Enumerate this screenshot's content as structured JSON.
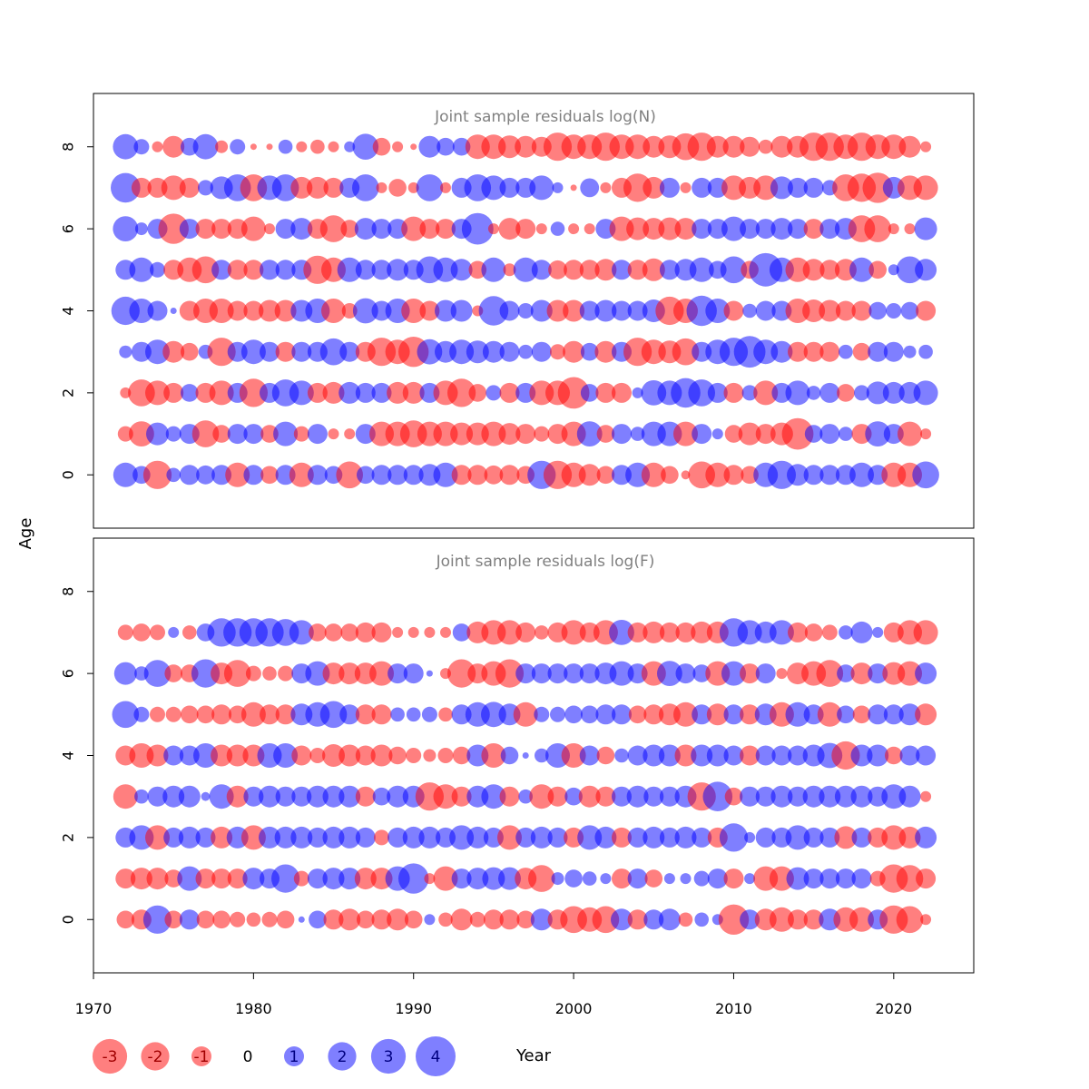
{
  "chart_data": {
    "type": "scatter",
    "subtype": "bubble",
    "shared_axes": {
      "xlabel": "Year",
      "ylabel": "Age",
      "xlim": [
        1970,
        2025
      ],
      "xticks": [
        "1970",
        "1980",
        "1990",
        "2000",
        "2010",
        "2020"
      ],
      "ylim": [
        -1.3,
        9.3
      ],
      "yticks": [
        "0",
        "2",
        "4",
        "6",
        "8"
      ]
    },
    "colors": {
      "negative": "#ff0000",
      "positive": "#0000ff",
      "opacity": 0.5
    },
    "legend": {
      "placement": "bottom-left",
      "entries": [
        {
          "label": "-3",
          "value": -3
        },
        {
          "label": "-2",
          "value": -2
        },
        {
          "label": "-1",
          "value": -1
        },
        {
          "label": "0",
          "value": 0
        },
        {
          "label": "1",
          "value": 1
        },
        {
          "label": "2",
          "value": 2
        },
        {
          "label": "3",
          "value": 3
        },
        {
          "label": "4",
          "value": 4
        }
      ]
    },
    "years": [
      1972,
      1973,
      1974,
      1975,
      1976,
      1977,
      1978,
      1979,
      1980,
      1981,
      1982,
      1983,
      1984,
      1985,
      1986,
      1987,
      1988,
      1989,
      1990,
      1991,
      1992,
      1993,
      1994,
      1995,
      1996,
      1997,
      1998,
      1999,
      2000,
      2001,
      2002,
      2003,
      2004,
      2005,
      2006,
      2007,
      2008,
      2009,
      2010,
      2011,
      2012,
      2013,
      2014,
      2015,
      2016,
      2017,
      2018,
      2019,
      2020,
      2021,
      2022
    ],
    "panels": [
      {
        "title": "Joint sample residuals log(N)",
        "ages": [
          0,
          1,
          2,
          3,
          4,
          5,
          6,
          7,
          8
        ],
        "residuals": [
          [
            1.5,
            0.8,
            -2.0,
            0.5,
            1.0,
            0.9,
            1.0,
            -1.5,
            1.0,
            -0.8,
            1.0,
            -1.5,
            1.0,
            0.8,
            -1.8,
            0.8,
            1.0,
            1.0,
            1.0,
            1.2,
            1.5,
            -1.0,
            -1.0,
            -0.9,
            -1.0,
            -0.8,
            2.0,
            -2.0,
            -1.5,
            -1.2,
            -0.8,
            1.0,
            1.5,
            -1.5,
            -0.8,
            -0.2,
            -1.8,
            -1.5,
            -1.0,
            -0.8,
            1.5,
            2.0,
            1.2,
            1.0,
            1.0,
            1.0,
            1.5,
            1.0,
            -1.5,
            -1.5,
            1.8
          ],
          [
            -0.6,
            -1.6,
            1.3,
            0.6,
            1.0,
            -1.8,
            -0.8,
            1.0,
            1.0,
            -0.8,
            1.5,
            -0.6,
            1.0,
            -0.3,
            -0.3,
            1.0,
            -1.5,
            -1.5,
            -1.8,
            -1.5,
            -1.5,
            -1.3,
            -1.3,
            -1.5,
            -1.2,
            -1.0,
            -0.6,
            -1.0,
            -1.5,
            1.6,
            -0.8,
            1.0,
            0.5,
            1.5,
            1.5,
            -1.5,
            1.0,
            0.3,
            -0.8,
            -1.3,
            -1.0,
            -1.3,
            -2.5,
            0.8,
            1.0,
            0.5,
            -1.0,
            1.6,
            1.0,
            -1.5,
            -0.3
          ],
          [
            -0.3,
            -1.8,
            -1.5,
            -1.0,
            0.8,
            -1.0,
            -1.5,
            1.0,
            -2.0,
            1.0,
            1.8,
            1.5,
            -1.0,
            -1.2,
            1.2,
            1.0,
            1.0,
            -1.2,
            -1.2,
            1.0,
            -1.5,
            -2.0,
            -0.8,
            0.6,
            -1.0,
            1.0,
            -1.5,
            -1.5,
            -2.5,
            0.8,
            -1.0,
            -1.0,
            0.3,
            1.6,
            1.5,
            2.2,
            1.8,
            1.0,
            -1.0,
            0.6,
            -1.5,
            1.0,
            1.5,
            0.5,
            1.0,
            -0.8,
            0.6,
            1.3,
            1.2,
            1.2,
            1.5
          ],
          [
            0.4,
            1.0,
            1.5,
            -1.2,
            -0.8,
            0.5,
            -2.0,
            1.0,
            1.5,
            1.0,
            -1.0,
            1.0,
            1.0,
            1.8,
            1.0,
            -1.0,
            -2.0,
            -1.5,
            -2.3,
            1.6,
            1.2,
            1.5,
            1.3,
            1.2,
            1.0,
            0.5,
            1.0,
            -0.6,
            -1.2,
            0.8,
            -1.2,
            1.0,
            -2.0,
            -1.5,
            -1.3,
            -1.8,
            1.0,
            1.5,
            2.0,
            2.5,
            1.5,
            1.2,
            -1.0,
            -1.0,
            -1.0,
            0.5,
            -0.8,
            1.0,
            1.0,
            0.4,
            0.5
          ],
          [
            2.0,
            1.5,
            1.0,
            0.1,
            -1.0,
            -1.5,
            -1.5,
            -1.0,
            -1.0,
            -1.2,
            -1.2,
            1.2,
            1.5,
            -1.5,
            -0.6,
            1.6,
            1.0,
            1.5,
            -1.5,
            -1.0,
            1.2,
            1.2,
            -0.3,
            2.2,
            1.0,
            0.6,
            1.2,
            -1.2,
            -1.2,
            1.0,
            1.2,
            1.0,
            1.0,
            1.3,
            -2.0,
            -1.5,
            2.3,
            1.5,
            -1.0,
            0.5,
            1.0,
            1.0,
            -1.5,
            -1.3,
            -1.2,
            -1.0,
            -1.0,
            0.8,
            0.6,
            0.8,
            -1.0
          ],
          [
            1.0,
            1.5,
            0.6,
            -1.0,
            -1.5,
            -1.8,
            1.0,
            -1.0,
            -1.0,
            1.0,
            1.0,
            1.0,
            -2.0,
            -1.5,
            1.5,
            1.0,
            1.0,
            1.2,
            1.0,
            1.8,
            1.5,
            1.2,
            -0.8,
            1.5,
            -0.4,
            1.5,
            1.0,
            -0.9,
            -1.0,
            -1.0,
            -1.2,
            1.0,
            -1.0,
            -1.3,
            1.0,
            1.2,
            1.5,
            0.8,
            1.8,
            -0.8,
            2.8,
            1.5,
            -1.5,
            -1.2,
            -1.0,
            -1.2,
            1.5,
            -0.8,
            0.3,
            1.8,
            1.2
          ],
          [
            1.6,
            0.4,
            1.0,
            -2.3,
            1.0,
            -1.0,
            -1.0,
            -1.0,
            -1.5,
            -0.3,
            1.0,
            1.2,
            -1.0,
            -1.8,
            -0.8,
            1.2,
            1.0,
            1.0,
            -1.5,
            -1.0,
            -1.0,
            1.0,
            2.5,
            -0.3,
            -1.2,
            -1.0,
            -0.3,
            0.5,
            -0.3,
            -0.3,
            1.0,
            -1.5,
            -1.3,
            -1.2,
            -1.3,
            -1.2,
            1.0,
            1.0,
            1.5,
            1.0,
            1.0,
            1.2,
            1.0,
            -1.0,
            1.0,
            1.2,
            -1.8,
            -1.8,
            -0.3,
            -0.3,
            1.3
          ],
          [
            2.2,
            -1.0,
            -1.0,
            -1.5,
            -1.0,
            0.6,
            1.3,
            1.8,
            -1.8,
            1.5,
            1.8,
            -1.2,
            -1.2,
            -1.0,
            1.0,
            1.8,
            -0.3,
            -0.8,
            -0.3,
            1.8,
            -0.3,
            1.0,
            1.8,
            1.5,
            1.0,
            1.0,
            1.5,
            0.3,
            -0.1,
            0.9,
            -0.3,
            -1.0,
            -2.0,
            -1.2,
            1.0,
            -0.3,
            1.0,
            1.0,
            -1.5,
            -1.2,
            -1.5,
            1.3,
            1.0,
            1.0,
            0.6,
            -1.8,
            -2.0,
            -2.3,
            1.2,
            -1.5,
            -1.5
          ],
          [
            1.6,
            0.6,
            -0.3,
            -1.2,
            0.8,
            1.6,
            -0.4,
            0.6,
            -0.1,
            -0.1,
            0.5,
            -0.3,
            -0.5,
            -0.3,
            0.3,
            1.7,
            -0.8,
            -0.3,
            -0.1,
            1.2,
            0.8,
            0.8,
            -1.5,
            -1.5,
            -1.3,
            -1.2,
            -1.0,
            -2.0,
            -1.5,
            -1.5,
            -2.0,
            -1.5,
            -1.5,
            -1.2,
            -1.3,
            -1.8,
            -2.0,
            -1.2,
            -1.2,
            -1.0,
            -0.5,
            -1.2,
            -1.2,
            -2.0,
            -2.0,
            -1.5,
            -2.0,
            -1.5,
            -1.5,
            -1.2,
            -0.3
          ]
        ]
      },
      {
        "title": "Joint sample residuals log(F)",
        "ages": [
          0,
          1,
          2,
          3,
          4,
          5,
          6,
          7
        ],
        "residuals": [
          [
            -0.8,
            -1.0,
            2.0,
            -0.8,
            1.0,
            -0.8,
            -0.8,
            -0.6,
            -0.5,
            -0.6,
            -0.8,
            0.1,
            0.8,
            -1.0,
            -1.2,
            -0.8,
            -1.0,
            -1.2,
            -0.8,
            0.3,
            -0.5,
            -1.2,
            -0.6,
            -1.0,
            -1.0,
            -0.8,
            1.2,
            -1.0,
            -1.8,
            -1.5,
            -1.8,
            1.2,
            -1.0,
            1.0,
            1.2,
            -0.5,
            0.5,
            0.3,
            -2.3,
            1.0,
            -1.2,
            -1.5,
            -1.0,
            -1.0,
            1.2,
            -1.5,
            -1.5,
            1.0,
            -2.0,
            -1.8,
            -0.3
          ],
          [
            -1.0,
            -1.2,
            -1.2,
            -0.8,
            1.5,
            -1.0,
            -1.0,
            -1.0,
            1.2,
            1.0,
            2.0,
            -0.6,
            1.0,
            1.2,
            1.2,
            -1.2,
            -1.2,
            1.5,
            2.3,
            -0.3,
            -1.5,
            1.0,
            1.2,
            1.3,
            1.3,
            -1.2,
            -1.8,
            0.4,
            0.8,
            0.5,
            0.3,
            -1.0,
            1.0,
            -0.8,
            0.3,
            0.3,
            0.6,
            1.0,
            -1.0,
            0.3,
            -1.5,
            -1.5,
            1.3,
            1.0,
            1.0,
            1.0,
            1.0,
            -0.6,
            -2.0,
            -1.8,
            -1.0
          ],
          [
            1.0,
            1.5,
            -1.5,
            1.0,
            1.2,
            1.0,
            -1.2,
            1.2,
            -1.5,
            1.2,
            1.2,
            1.2,
            1.0,
            1.2,
            1.2,
            1.0,
            -0.6,
            1.0,
            1.2,
            1.2,
            1.0,
            1.5,
            1.2,
            1.0,
            -1.5,
            1.0,
            1.2,
            1.0,
            -1.0,
            1.5,
            1.2,
            -1.0,
            1.0,
            1.2,
            1.0,
            1.2,
            1.0,
            -1.0,
            2.0,
            0.3,
            1.0,
            1.0,
            1.5,
            1.0,
            1.0,
            -1.3,
            1.0,
            -1.0,
            -1.5,
            -1.2,
            1.2
          ],
          [
            -1.5,
            0.5,
            1.0,
            1.2,
            1.2,
            0.2,
            1.5,
            -1.2,
            1.0,
            1.2,
            1.0,
            1.0,
            1.2,
            1.2,
            1.2,
            -1.0,
            0.8,
            1.2,
            1.2,
            -2.0,
            -1.5,
            -1.0,
            1.2,
            1.5,
            -1.0,
            0.5,
            -1.5,
            -1.0,
            0.8,
            -1.2,
            -1.0,
            1.0,
            1.2,
            1.0,
            1.0,
            1.2,
            -2.0,
            2.2,
            -0.8,
            1.0,
            1.0,
            1.2,
            1.0,
            1.2,
            1.2,
            1.2,
            1.2,
            1.0,
            1.5,
            1.2,
            -0.3
          ],
          [
            -1.0,
            -1.5,
            -1.2,
            1.0,
            1.0,
            1.5,
            -1.2,
            -1.2,
            -1.2,
            1.5,
            1.5,
            -1.0,
            -0.6,
            -1.3,
            -1.2,
            -1.0,
            -1.2,
            -0.8,
            -0.6,
            -0.4,
            -0.6,
            -0.8,
            1.2,
            -1.5,
            0.8,
            0.1,
            0.5,
            1.5,
            -1.5,
            1.0,
            -0.8,
            0.5,
            1.0,
            1.2,
            1.2,
            -1.2,
            1.2,
            1.2,
            1.0,
            -1.0,
            1.0,
            1.0,
            1.0,
            1.2,
            1.6,
            -2.0,
            1.2,
            1.2,
            -0.8,
            1.0,
            1.0
          ],
          [
            1.8,
            0.6,
            -0.6,
            -0.6,
            -0.8,
            -0.8,
            -1.0,
            -0.8,
            -1.5,
            -1.0,
            -1.0,
            1.2,
            1.5,
            1.8,
            1.0,
            -1.0,
            -1.0,
            0.5,
            0.5,
            0.6,
            -0.5,
            1.0,
            1.5,
            1.6,
            1.2,
            -1.5,
            0.6,
            0.6,
            0.8,
            0.8,
            1.0,
            1.0,
            -0.8,
            -1.0,
            -1.2,
            -1.5,
            1.0,
            -1.2,
            1.0,
            -1.0,
            1.2,
            -1.5,
            1.5,
            1.0,
            -1.5,
            0.8,
            -0.8,
            1.0,
            1.0,
            1.2,
            -1.2
          ],
          [
            1.3,
            0.5,
            1.8,
            -0.8,
            -0.8,
            2.0,
            -1.2,
            -1.8,
            -0.6,
            -0.5,
            -0.6,
            1.0,
            1.5,
            -1.2,
            -1.2,
            -1.2,
            -1.5,
            1.0,
            1.0,
            0.1,
            -0.3,
            -2.0,
            -1.0,
            -1.5,
            -2.0,
            1.0,
            1.0,
            1.0,
            1.0,
            1.0,
            1.2,
            1.5,
            1.0,
            -1.5,
            1.6,
            1.0,
            0.8,
            -1.5,
            1.5,
            -1.0,
            1.0,
            -0.3,
            -1.2,
            -1.5,
            -1.8,
            0.8,
            -1.2,
            1.0,
            -1.3,
            -1.5,
            1.2
          ],
          [
            -0.6,
            -0.8,
            -0.6,
            0.3,
            -0.5,
            0.8,
            2.0,
            2.0,
            2.0,
            2.0,
            1.8,
            1.5,
            -0.8,
            -0.8,
            -0.8,
            -1.0,
            -1.0,
            -0.3,
            -0.3,
            -0.3,
            -0.3,
            0.8,
            -1.2,
            -1.5,
            -1.5,
            -1.0,
            -0.5,
            -1.0,
            -1.5,
            -1.0,
            -1.5,
            1.6,
            -1.0,
            -1.2,
            -1.0,
            -1.0,
            -1.2,
            -1.2,
            2.0,
            1.5,
            1.2,
            1.5,
            -1.0,
            -0.8,
            -0.6,
            0.5,
            1.2,
            0.3,
            -1.0,
            -1.5,
            -1.5
          ]
        ]
      }
    ]
  }
}
